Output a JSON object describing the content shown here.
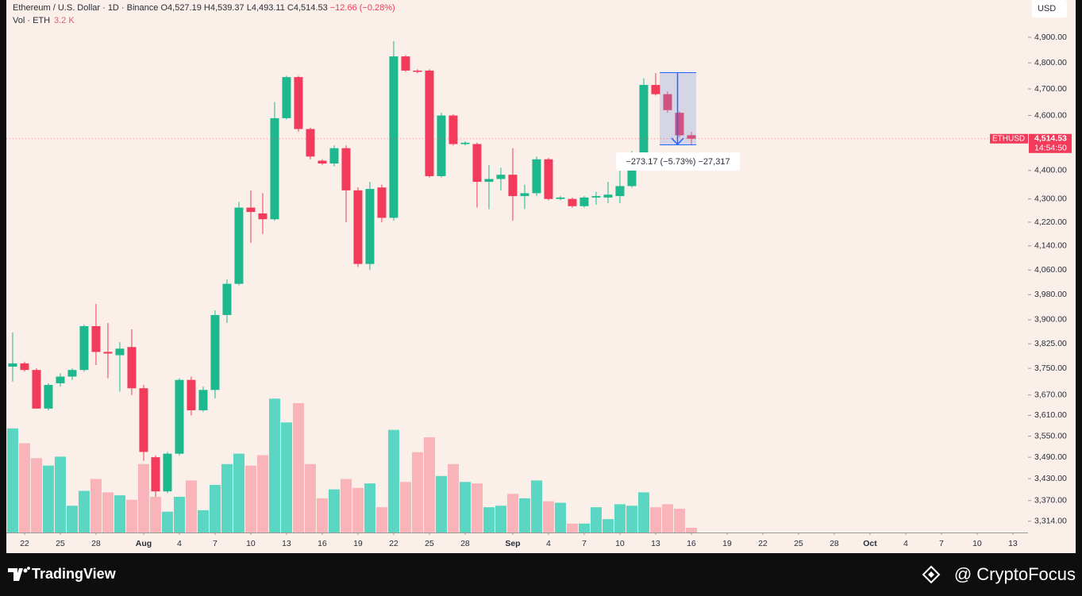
{
  "chart_data": {
    "type": "candlestick",
    "header": {
      "symbol": "Ethereum / U.S. Dollar · 1D · Binance",
      "ohlc": [
        "O4,527.19",
        "H4,539.37",
        "L4,493.11",
        "C4,514.53"
      ],
      "change": "−12.66 (−0.28%)"
    },
    "volume_title": "Vol · ETH",
    "volume_readout": "3.2 K",
    "currency": "USD",
    "price_label": {
      "symbol": "ETHUSD",
      "value": "4,514.53",
      "countdown": "14:54:50"
    },
    "measure_label": "−273.17 (−5.73%) −27,317",
    "up_color": "#1db88e",
    "down_color": "#f23a5a",
    "volume_up_color": "#5ad6c2",
    "volume_down_color": "#f9b4b9",
    "log_scale": true,
    "grid": false,
    "xlim": [
      -0.53,
      85.27
    ],
    "xticks": [
      {
        "value": 1,
        "label": "22"
      },
      {
        "value": 4,
        "label": "25"
      },
      {
        "value": 7,
        "label": "28"
      },
      {
        "value": 11,
        "label": "Aug"
      },
      {
        "value": 14,
        "label": "4"
      },
      {
        "value": 17,
        "label": "7"
      },
      {
        "value": 20,
        "label": "10"
      },
      {
        "value": 23,
        "label": "13"
      },
      {
        "value": 26,
        "label": "16"
      },
      {
        "value": 29,
        "label": "19"
      },
      {
        "value": 32,
        "label": "22"
      },
      {
        "value": 35,
        "label": "25"
      },
      {
        "value": 38,
        "label": "28"
      },
      {
        "value": 42,
        "label": "Sep"
      },
      {
        "value": 45,
        "label": "4"
      },
      {
        "value": 48,
        "label": "7"
      },
      {
        "value": 51,
        "label": "10"
      },
      {
        "value": 54,
        "label": "13"
      },
      {
        "value": 57,
        "label": "16"
      },
      {
        "value": 60,
        "label": "19"
      },
      {
        "value": 63,
        "label": "22"
      },
      {
        "value": 66,
        "label": "25"
      },
      {
        "value": 69,
        "label": "28"
      },
      {
        "value": 72,
        "label": "Oct"
      },
      {
        "value": 75,
        "label": "4"
      },
      {
        "value": 78,
        "label": "7"
      },
      {
        "value": 81,
        "label": "10"
      },
      {
        "value": 84,
        "label": "13"
      }
    ],
    "ylim": [
      3284,
      5050
    ],
    "yticks": [
      {
        "value": 4900,
        "label": "4,900.00"
      },
      {
        "value": 4800,
        "label": "4,800.00"
      },
      {
        "value": 4700,
        "label": "4,700.00"
      },
      {
        "value": 4600,
        "label": "4,600.00"
      },
      {
        "value": 4400,
        "label": "4,400.00"
      },
      {
        "value": 4300,
        "label": "4,300.00"
      },
      {
        "value": 4220,
        "label": "4,220.00"
      },
      {
        "value": 4140,
        "label": "4,140.00"
      },
      {
        "value": 4060,
        "label": "4,060.00"
      },
      {
        "value": 3980,
        "label": "3,980.00"
      },
      {
        "value": 3900,
        "label": "3,900.00"
      },
      {
        "value": 3825,
        "label": "3,825.00"
      },
      {
        "value": 3750,
        "label": "3,750.00"
      },
      {
        "value": 3670,
        "label": "3,670.00"
      },
      {
        "value": 3610,
        "label": "3,610.00"
      },
      {
        "value": 3550,
        "label": "3,550.00"
      },
      {
        "value": 3490,
        "label": "3,490.00"
      },
      {
        "value": 3430,
        "label": "3,430.00"
      },
      {
        "value": 3370,
        "label": "3,370.00"
      },
      {
        "value": 3314,
        "label": "3,314.00"
      }
    ],
    "vlim": [
      0,
      358
    ],
    "open": [
      3755,
      3765,
      3745,
      3630,
      3705,
      3725,
      3745,
      3880,
      3800,
      3790,
      3815,
      3690,
      3490,
      3395,
      3500,
      3715,
      3625,
      3685,
      3915,
      4015,
      4270,
      4250,
      4230,
      4590,
      4745,
      4550,
      4435,
      4425,
      4480,
      4330,
      4080,
      4340,
      4235,
      4825,
      4770,
      4770,
      4380,
      4600,
      4495,
      4495,
      4360,
      4370,
      4385,
      4310,
      4320,
      4440,
      4300,
      4300,
      4275,
      4305,
      4305,
      4310,
      4345,
      4455,
      4715,
      4680,
      4610,
      4527.19
    ],
    "high": [
      3860,
      3770,
      3750,
      3705,
      3735,
      3750,
      3885,
      3950,
      3890,
      3830,
      3870,
      3700,
      3495,
      3505,
      3720,
      3725,
      3695,
      3930,
      4030,
      4290,
      4330,
      4320,
      4650,
      4750,
      4750,
      4555,
      4440,
      4490,
      4490,
      4340,
      4360,
      4350,
      4885,
      4830,
      4775,
      4775,
      4610,
      4605,
      4505,
      4500,
      4420,
      4410,
      4480,
      4350,
      4450,
      4445,
      4310,
      4305,
      4310,
      4325,
      4360,
      4440,
      4470,
      4740,
      4760,
      4690,
      4615,
      4539.37
    ],
    "low": [
      3710,
      3740,
      3630,
      3625,
      3695,
      3715,
      3740,
      3760,
      3720,
      3680,
      3670,
      3480,
      3380,
      3390,
      3495,
      3610,
      3620,
      3660,
      3890,
      4010,
      4150,
      4180,
      4225,
      4585,
      4540,
      4440,
      4420,
      4415,
      4220,
      4070,
      4060,
      4220,
      4225,
      4765,
      4760,
      4375,
      4375,
      4490,
      4490,
      4270,
      4265,
      4330,
      4225,
      4265,
      4310,
      4295,
      4295,
      4270,
      4270,
      4280,
      4285,
      4285,
      4340,
      4450,
      4675,
      4610,
      4520,
      4493.11
    ],
    "close": [
      3765,
      3745,
      3630,
      3700,
      3725,
      3745,
      3880,
      3800,
      3795,
      3810,
      3690,
      3505,
      3395,
      3500,
      3715,
      3625,
      3685,
      3915,
      4015,
      4270,
      4255,
      4230,
      4590,
      4745,
      4550,
      4450,
      4425,
      4480,
      4330,
      4080,
      4335,
      4235,
      4825,
      4770,
      4765,
      4380,
      4600,
      4495,
      4500,
      4360,
      4370,
      4385,
      4310,
      4320,
      4440,
      4300,
      4305,
      4275,
      4305,
      4310,
      4315,
      4345,
      4455,
      4715,
      4680,
      4620,
      4527,
      4514.53
    ],
    "volume": [
      70,
      60,
      50,
      45,
      51,
      18,
      28,
      36,
      27,
      25,
      22,
      46,
      24,
      14,
      24,
      35,
      15,
      32,
      46,
      53,
      45,
      52,
      90,
      74,
      87,
      46,
      23,
      29,
      36,
      30,
      33,
      17,
      69,
      34,
      54,
      64,
      38,
      46,
      34,
      33,
      17,
      18,
      26,
      23,
      35,
      21,
      20,
      6,
      6,
      17,
      9,
      19,
      18,
      27,
      17,
      19,
      16,
      3.2
    ]
  },
  "footer": {
    "brand": "TradingView",
    "credit": "@ CryptoFocus"
  }
}
